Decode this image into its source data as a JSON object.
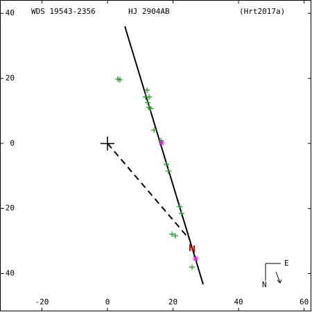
{
  "chart_data": {
    "type": "scatter",
    "title": "WDS 19543-2356",
    "subtitle": "HJ 2904AB",
    "reference": "(Hrt2017a)",
    "compass": {
      "east": "E",
      "north": "N"
    },
    "xlim": [
      -32.8,
      62.2
    ],
    "ylim": [
      -51.6,
      44.1
    ],
    "xticks": [
      -20,
      0,
      20,
      40,
      60
    ],
    "yticks": [
      -40,
      -20,
      0,
      20,
      40
    ],
    "orbit": {
      "color": "#000000",
      "x": [
        5.3,
        29.2
      ],
      "y": [
        36.0,
        -43.3
      ]
    },
    "node_line": {
      "color": "#000000",
      "x": [
        0,
        25.0
      ],
      "y": [
        0,
        -29.4
      ]
    },
    "series": [
      {
        "color": "#22a022",
        "x": [
          3.2,
          3.8,
          12.1,
          11.6,
          12.7,
          12.3,
          12.7,
          13.1,
          14.2,
          16.3,
          18.0,
          18.6,
          22.0,
          22.6,
          19.7,
          20.7,
          25.8
        ],
        "y": [
          19.8,
          19.6,
          16.4,
          14.3,
          14.3,
          12.6,
          11.1,
          10.7,
          4.1,
          0.9,
          -6.4,
          -8.5,
          -19.4,
          -21.5,
          -27.9,
          -28.4,
          -38.0
        ]
      },
      {
        "color": "#e020e0",
        "x": [
          16.5,
          26.9
        ],
        "y": [
          0.2,
          -35.4
        ]
      }
    ],
    "marker": {
      "color": "#e00000",
      "x": [
        25.8
      ],
      "y": [
        -32.2
      ]
    }
  }
}
